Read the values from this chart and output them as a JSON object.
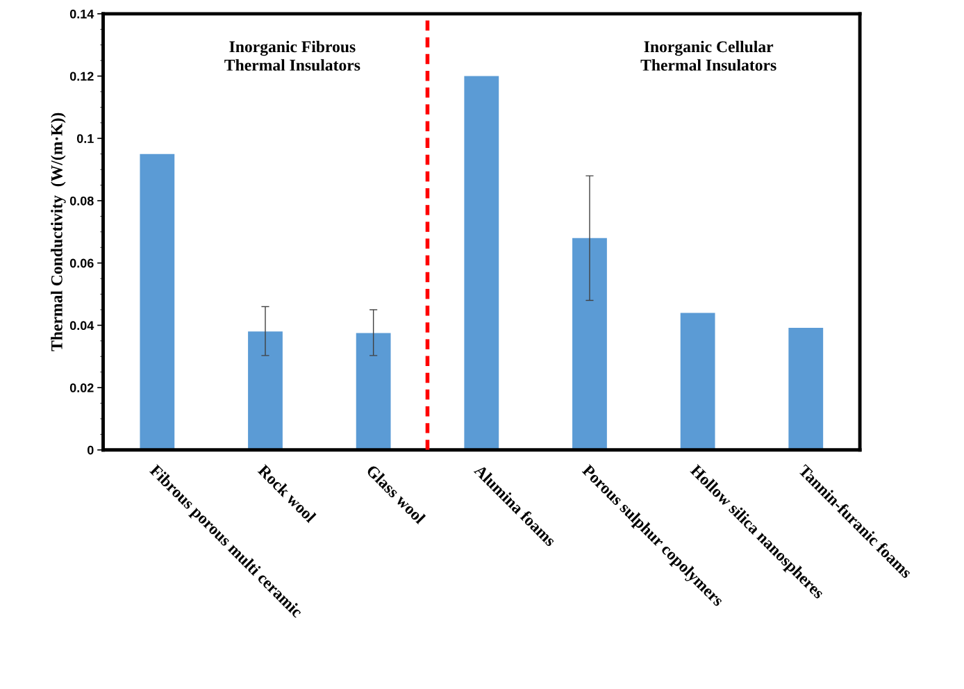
{
  "chart_data": {
    "type": "bar",
    "ylabel": "Thermal Conductivity  (W/(m·K))",
    "categories": [
      "Fibrous porous multi ceramic",
      "Rock wool",
      "Glass wool",
      "Alumina foams",
      "Porous sulphur copolymers",
      "Hollow silica nanospheres",
      "Tannin-furanic foams"
    ],
    "values": [
      0.095,
      0.038,
      0.0375,
      0.12,
      0.068,
      0.044,
      0.0392
    ],
    "errors": [
      null,
      [
        0.0303,
        0.046
      ],
      [
        0.0303,
        0.045
      ],
      null,
      [
        0.048,
        0.088
      ],
      null,
      null
    ],
    "color": "#5b9bd5",
    "ylim": [
      0,
      0.14
    ],
    "yticks": [
      0,
      0.02,
      0.04,
      0.06,
      0.08,
      0.1,
      0.12,
      0.14
    ],
    "annotations": [
      "Inorganic Fibrous\nThermal Insulators",
      "Inorganic Cellular\nThermal Insulators"
    ],
    "grid": false,
    "legend": false
  }
}
